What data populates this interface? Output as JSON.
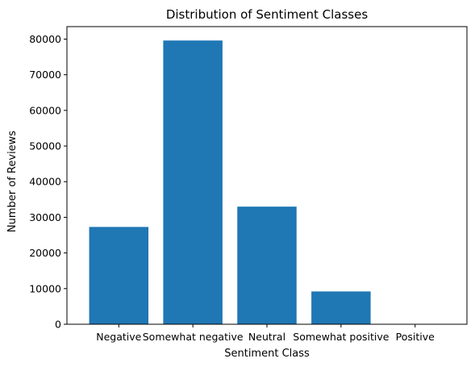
{
  "chart_data": {
    "type": "bar",
    "title": "Distribution of Sentiment Classes",
    "xlabel": "Sentiment Class",
    "ylabel": "Number of Reviews",
    "categories": [
      "Negative",
      "Somewhat negative",
      "Neutral",
      "Somewhat positive",
      "Positive"
    ],
    "values": [
      27300,
      79600,
      33000,
      9200,
      0
    ],
    "ylim": [
      0,
      83500
    ],
    "yticks": [
      0,
      10000,
      20000,
      30000,
      40000,
      50000,
      60000,
      70000,
      80000
    ],
    "grid": false,
    "bar_color": "#1f77b4"
  }
}
